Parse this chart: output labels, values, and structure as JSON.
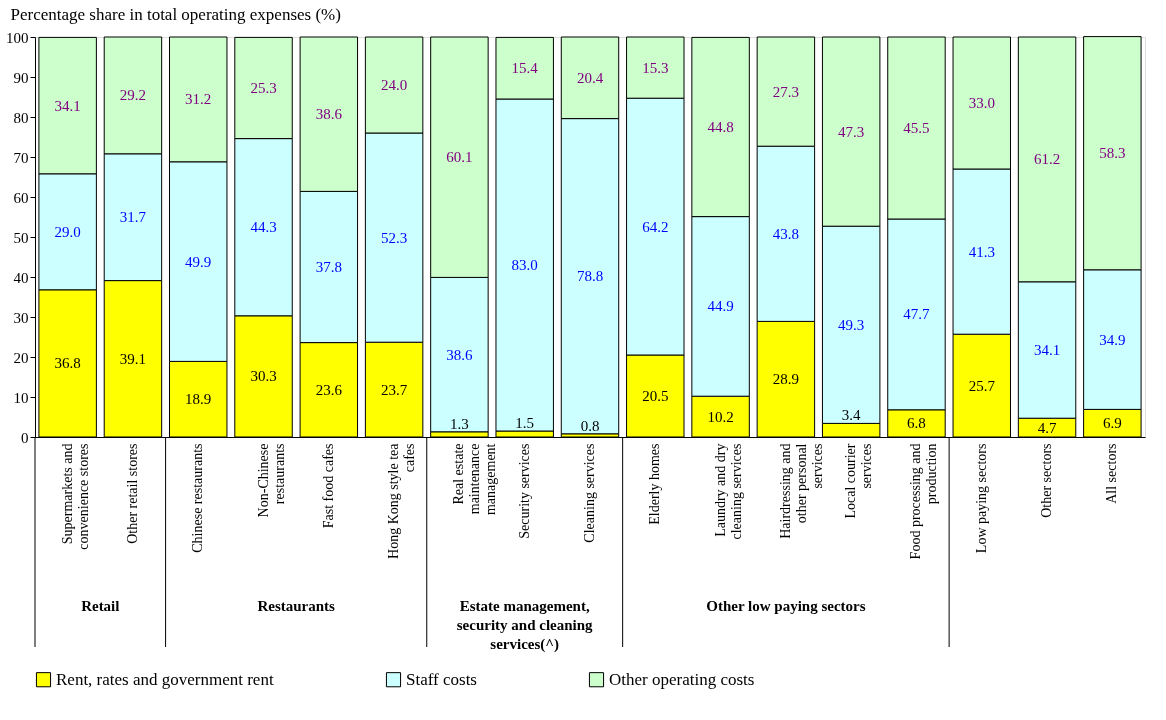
{
  "chart_data": {
    "type": "bar",
    "stacked": true,
    "ylabel": "Percentage share in total operating expenses (%)",
    "categories": [
      "Supermarkets and convenience stores",
      "Other retail stores",
      "Chinese restaurants",
      "Non-Chinese restaurants",
      "Fast food cafes",
      "Hong Kong style tea cafes",
      "Real estate maintenance management",
      "Security services",
      "Cleaning services",
      "Elderly homes",
      "Laundry and dry cleaning services",
      "Hairdressing and other personal services",
      "Local courier services",
      "Food processing and production",
      "Low paying sectors",
      "Other sectors",
      "All sectors"
    ],
    "series": [
      {
        "name": "Rent, rates and government rent",
        "color": "#ffff00",
        "values": [
          36.8,
          39.1,
          18.9,
          30.3,
          23.6,
          23.7,
          1.3,
          1.5,
          0.8,
          20.5,
          10.2,
          28.9,
          3.4,
          6.8,
          25.7,
          4.7,
          6.9
        ],
        "value_labels": [
          "36.8",
          "39.1",
          "18.9",
          "30.3",
          "23.6",
          "23.7",
          "1.3",
          "1.5",
          "0.8",
          "20.5",
          "10.2",
          "28.9",
          "3.4",
          "6.8",
          "25.7",
          "4.7",
          "6.9"
        ]
      },
      {
        "name": "Staff costs",
        "color": "#ccffff",
        "values": [
          29.0,
          31.7,
          49.9,
          44.3,
          37.8,
          52.3,
          38.6,
          83.0,
          78.8,
          64.2,
          44.9,
          43.8,
          49.3,
          47.7,
          41.3,
          34.1,
          34.9
        ],
        "value_labels": [
          "29.0",
          "31.7",
          "49.9",
          "44.3",
          "37.8",
          "52.3",
          "38.6",
          "83.0",
          "78.8",
          "64.2",
          "44.9",
          "43.8",
          "49.3",
          "47.7",
          "41.3",
          "34.1",
          "34.9"
        ]
      },
      {
        "name": "Other operating costs",
        "color": "#ccffcc",
        "values": [
          34.1,
          29.2,
          31.2,
          25.3,
          38.6,
          24.0,
          60.1,
          15.4,
          20.4,
          15.3,
          44.8,
          27.3,
          47.3,
          45.5,
          33.0,
          61.2,
          58.3
        ],
        "value_labels": [
          "34.1",
          "29.2",
          "31.2",
          "25.3",
          "38.6",
          "24.0",
          "60.1",
          "15.4",
          "20.4",
          "15.3",
          "44.8",
          "27.3",
          "47.3",
          "45.5",
          "33.0",
          "61.2",
          "58.3"
        ]
      }
    ],
    "ylim": [
      0,
      100
    ],
    "yticks": [
      0,
      10,
      20,
      30,
      40,
      50,
      60,
      70,
      80,
      90,
      100
    ],
    "grid": false,
    "legend": "bottom",
    "annotations": [
      "Retail",
      "Restaurants",
      "Estate management, security and cleaning services(^)",
      "Other low paying sectors"
    ]
  }
}
